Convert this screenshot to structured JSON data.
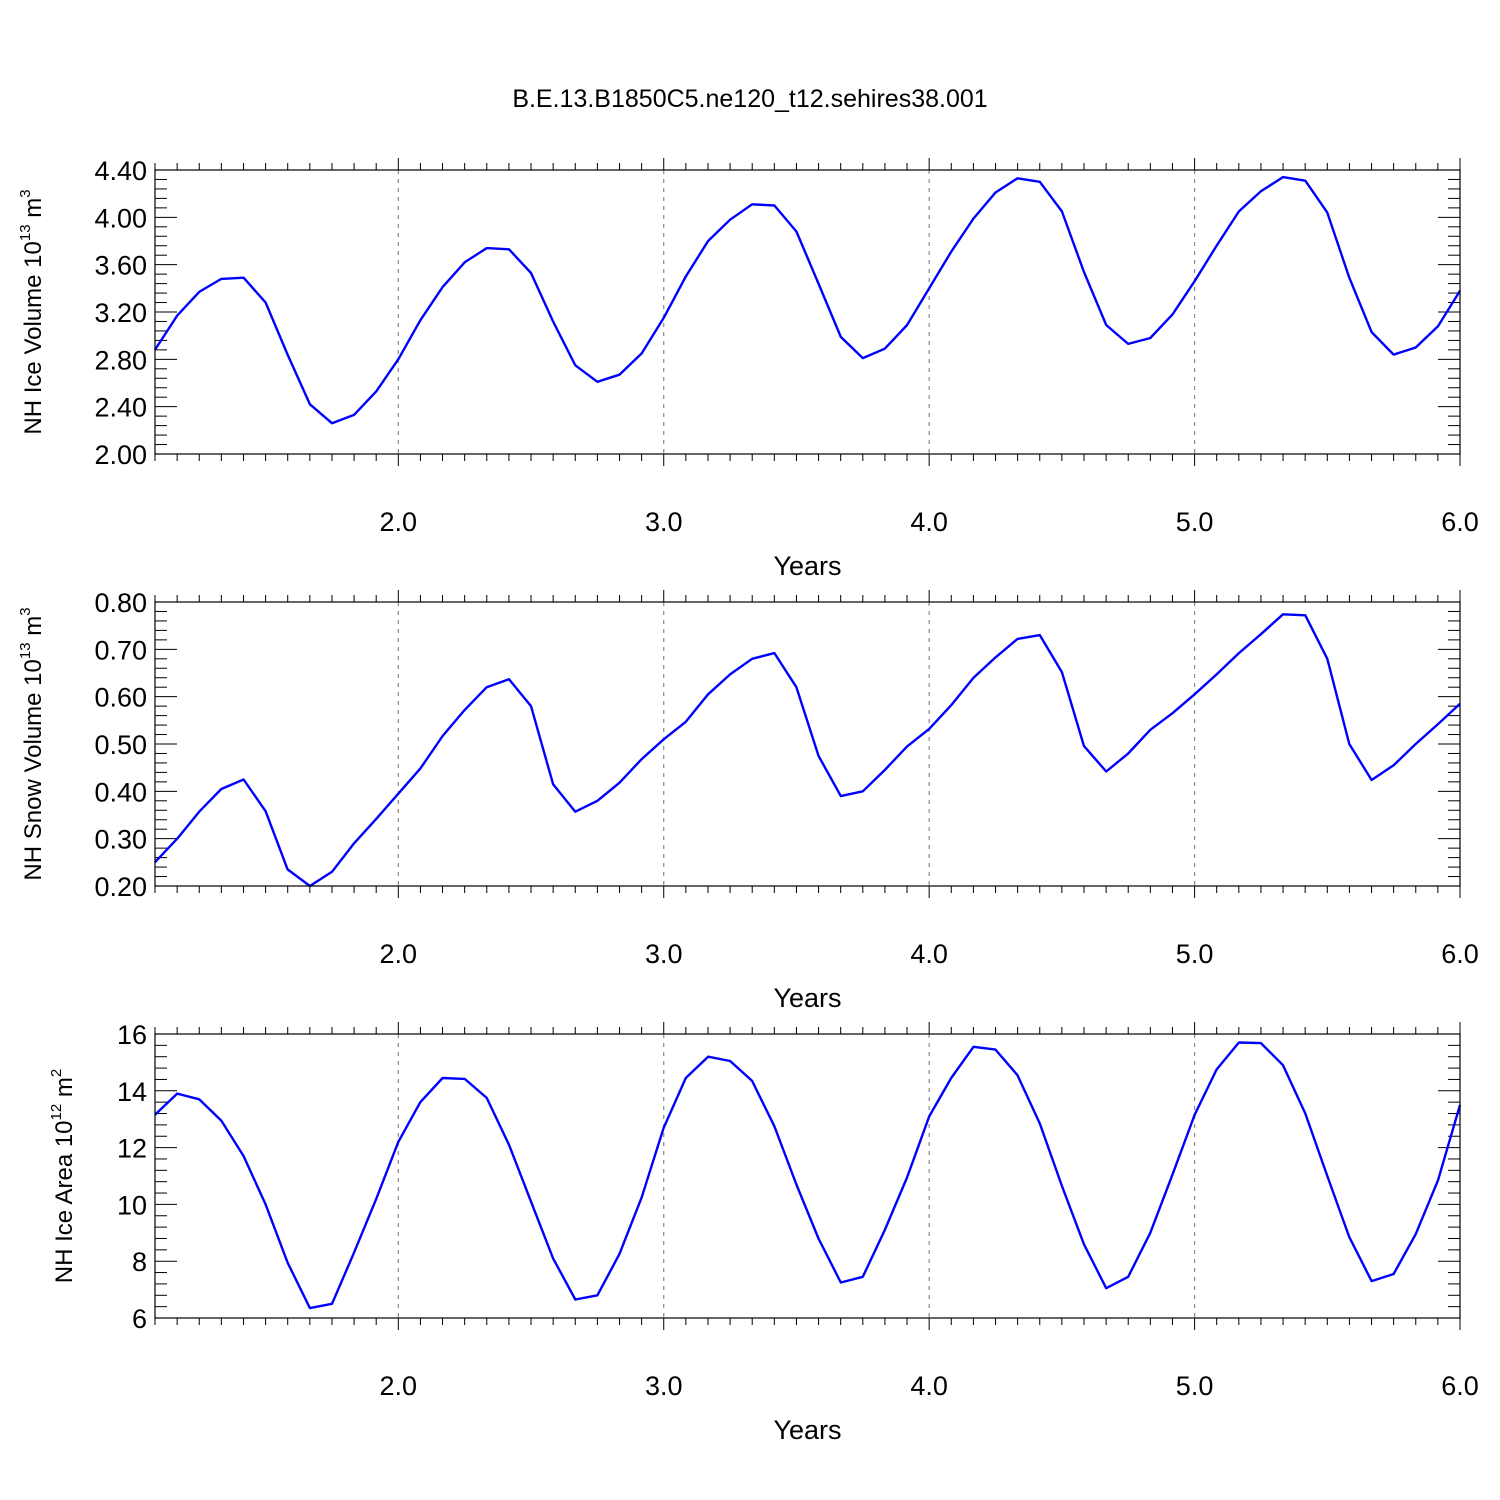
{
  "title": "B.E.13.B1850C5.ne120_t12.sehires38.001",
  "colors": {
    "series": "#0000ff",
    "axes": "#000000",
    "grid": "#888888"
  },
  "chart_data": [
    {
      "type": "line",
      "title": "B.E.13.B1850C5.ne120_t12.sehires38.001",
      "xlabel": "Years",
      "ylabel": {
        "main": "NH Ice Volume 10",
        "exp": "13",
        "unit": " m",
        "unit_exp": "3"
      },
      "xlim": [
        1.0833,
        6.0
      ],
      "ylim": [
        2.0,
        4.4
      ],
      "xticks": [
        2.0,
        3.0,
        4.0,
        5.0,
        6.0
      ],
      "xtick_labels": [
        "2.0",
        "3.0",
        "4.0",
        "5.0",
        "6.0"
      ],
      "yticks": [
        2.0,
        2.4,
        2.8,
        3.2,
        3.6,
        4.0,
        4.4
      ],
      "ytick_labels": [
        "2.00",
        "2.40",
        "2.80",
        "3.20",
        "3.60",
        "4.00",
        "4.40"
      ],
      "grid": "vertical dashed at major x ticks",
      "series": [
        {
          "x": [
            1.083,
            1.167,
            1.25,
            1.333,
            1.417,
            1.5,
            1.583,
            1.667,
            1.75,
            1.833,
            1.917,
            2.0,
            2.083,
            2.167,
            2.25,
            2.333,
            2.417,
            2.5,
            2.583,
            2.667,
            2.75,
            2.833,
            2.917,
            3.0,
            3.083,
            3.167,
            3.25,
            3.333,
            3.417,
            3.5,
            3.583,
            3.667,
            3.75,
            3.833,
            3.917,
            4.0,
            4.083,
            4.167,
            4.25,
            4.333,
            4.417,
            4.5,
            4.583,
            4.667,
            4.75,
            4.833,
            4.917,
            5.0,
            5.083,
            5.167,
            5.25,
            5.333,
            5.417,
            5.5,
            5.583,
            5.667,
            5.75,
            5.833,
            5.917,
            6.0
          ],
          "values": [
            2.88,
            3.17,
            3.37,
            3.48,
            3.49,
            3.28,
            2.84,
            2.42,
            2.26,
            2.33,
            2.53,
            2.8,
            3.13,
            3.41,
            3.62,
            3.74,
            3.73,
            3.53,
            3.12,
            2.75,
            2.61,
            2.67,
            2.85,
            3.15,
            3.5,
            3.8,
            3.98,
            4.11,
            4.1,
            3.88,
            3.44,
            2.99,
            2.81,
            2.89,
            3.09,
            3.4,
            3.71,
            3.99,
            4.21,
            4.33,
            4.3,
            4.05,
            3.54,
            3.09,
            2.93,
            2.98,
            3.18,
            3.46,
            3.76,
            4.05,
            4.22,
            4.34,
            4.31,
            4.04,
            3.49,
            3.03,
            2.84,
            2.9,
            3.08,
            3.38
          ]
        }
      ]
    },
    {
      "type": "line",
      "xlabel": "Years",
      "ylabel": {
        "main": "NH Snow Volume 10",
        "exp": "13",
        "unit": " m",
        "unit_exp": "3"
      },
      "xlim": [
        1.0833,
        6.0
      ],
      "ylim": [
        0.2,
        0.8
      ],
      "xticks": [
        2.0,
        3.0,
        4.0,
        5.0,
        6.0
      ],
      "xtick_labels": [
        "2.0",
        "3.0",
        "4.0",
        "5.0",
        "6.0"
      ],
      "yticks": [
        0.2,
        0.3,
        0.4,
        0.5,
        0.6,
        0.7,
        0.8
      ],
      "ytick_labels": [
        "0.20",
        "0.30",
        "0.40",
        "0.50",
        "0.60",
        "0.70",
        "0.80"
      ],
      "grid": "vertical dashed at major x ticks",
      "series": [
        {
          "x": [
            1.083,
            1.167,
            1.25,
            1.333,
            1.417,
            1.5,
            1.583,
            1.667,
            1.75,
            1.833,
            1.917,
            2.0,
            2.083,
            2.167,
            2.25,
            2.333,
            2.417,
            2.5,
            2.583,
            2.667,
            2.75,
            2.833,
            2.917,
            3.0,
            3.083,
            3.167,
            3.25,
            3.333,
            3.417,
            3.5,
            3.583,
            3.667,
            3.75,
            3.833,
            3.917,
            4.0,
            4.083,
            4.167,
            4.25,
            4.333,
            4.417,
            4.5,
            4.583,
            4.667,
            4.75,
            4.833,
            4.917,
            5.0,
            5.083,
            5.167,
            5.25,
            5.333,
            5.417,
            5.5,
            5.583,
            5.667,
            5.75,
            5.833,
            5.917,
            6.0
          ],
          "values": [
            0.25,
            0.3,
            0.357,
            0.405,
            0.425,
            0.358,
            0.235,
            0.2,
            0.23,
            0.29,
            0.342,
            0.395,
            0.448,
            0.517,
            0.572,
            0.62,
            0.637,
            0.58,
            0.415,
            0.357,
            0.38,
            0.418,
            0.468,
            0.51,
            0.547,
            0.605,
            0.647,
            0.68,
            0.692,
            0.62,
            0.475,
            0.39,
            0.4,
            0.445,
            0.495,
            0.532,
            0.582,
            0.64,
            0.683,
            0.722,
            0.73,
            0.652,
            0.496,
            0.442,
            0.48,
            0.53,
            0.565,
            0.605,
            0.647,
            0.692,
            0.732,
            0.774,
            0.772,
            0.68,
            0.5,
            0.424,
            0.455,
            0.5,
            0.542,
            0.585
          ]
        }
      ]
    },
    {
      "type": "line",
      "xlabel": "Years",
      "ylabel": {
        "main": "NH Ice Area 10",
        "exp": "12",
        "unit": " m",
        "unit_exp": "2"
      },
      "xlim": [
        1.0833,
        6.0
      ],
      "ylim": [
        6,
        16
      ],
      "xticks": [
        2.0,
        3.0,
        4.0,
        5.0,
        6.0
      ],
      "xtick_labels": [
        "2.0",
        "3.0",
        "4.0",
        "5.0",
        "6.0"
      ],
      "yticks": [
        6,
        8,
        10,
        12,
        14,
        16
      ],
      "ytick_labels": [
        "6",
        "8",
        "10",
        "12",
        "14",
        "16"
      ],
      "grid": "vertical dashed at major x ticks",
      "series": [
        {
          "x": [
            1.083,
            1.167,
            1.25,
            1.333,
            1.417,
            1.5,
            1.583,
            1.667,
            1.75,
            1.833,
            1.917,
            2.0,
            2.083,
            2.167,
            2.25,
            2.333,
            2.417,
            2.5,
            2.583,
            2.667,
            2.75,
            2.833,
            2.917,
            3.0,
            3.083,
            3.167,
            3.25,
            3.333,
            3.417,
            3.5,
            3.583,
            3.667,
            3.75,
            3.833,
            3.917,
            4.0,
            4.083,
            4.167,
            4.25,
            4.333,
            4.417,
            4.5,
            4.583,
            4.667,
            4.75,
            4.833,
            4.917,
            5.0,
            5.083,
            5.167,
            5.25,
            5.333,
            5.417,
            5.5,
            5.583,
            5.667,
            5.75,
            5.833,
            5.917,
            6.0
          ],
          "values": [
            13.15,
            13.9,
            13.7,
            12.95,
            11.7,
            10.0,
            7.95,
            6.35,
            6.5,
            8.3,
            10.2,
            12.2,
            13.6,
            14.45,
            14.42,
            13.75,
            12.1,
            10.1,
            8.1,
            6.65,
            6.8,
            8.25,
            10.25,
            12.7,
            14.45,
            15.2,
            15.05,
            14.35,
            12.75,
            10.7,
            8.8,
            7.25,
            7.45,
            9.1,
            10.95,
            13.1,
            14.45,
            15.55,
            15.45,
            14.55,
            12.85,
            10.65,
            8.6,
            7.05,
            7.45,
            9.0,
            11.05,
            13.15,
            14.75,
            15.7,
            15.68,
            14.9,
            13.2,
            11.0,
            8.85,
            7.3,
            7.55,
            8.95,
            10.85,
            13.5
          ]
        }
      ]
    }
  ]
}
